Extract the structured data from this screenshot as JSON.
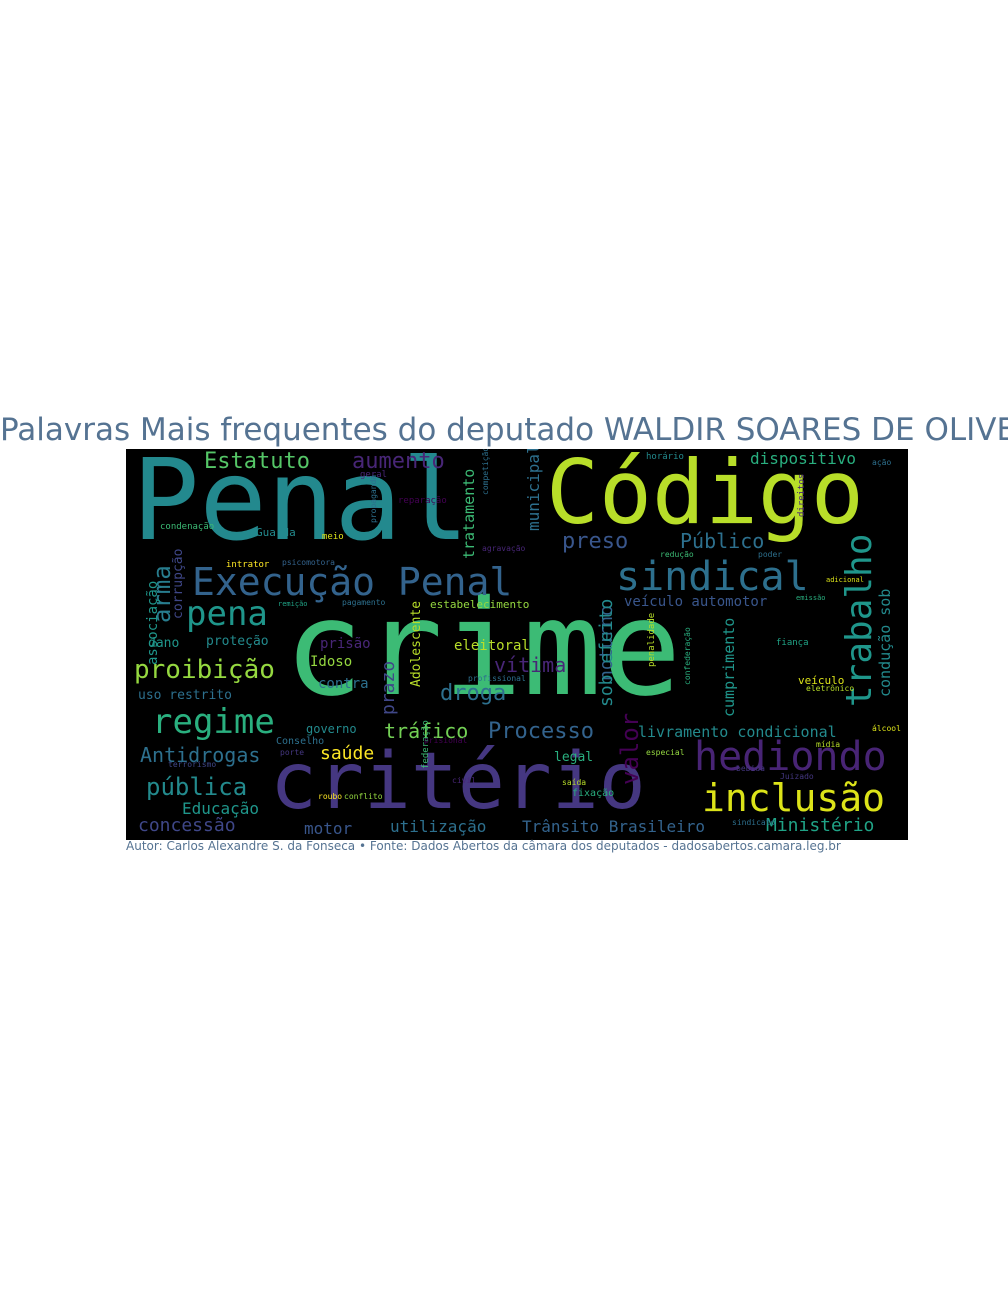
{
  "title": "Palavras Mais frequentes do deputado WALDIR SOARES DE OLIVEIRA",
  "caption": "Autor: Carlos Alexandre S. da Fonseca • Fonte: Dados Abertos da câmara dos deputados - dadosabertos.camara.leg.br",
  "colors": {
    "title_text": "#557392",
    "cloud_background": "#000000"
  },
  "cloud": {
    "words": [
      {
        "text": "Penal",
        "color": "#23898e"
      },
      {
        "text": "Código",
        "color": "#b8de29"
      },
      {
        "text": "crime",
        "color": "#3cbb75"
      },
      {
        "text": "critério",
        "color": "#453781"
      },
      {
        "text": "Execução Penal",
        "color": "#33638d"
      },
      {
        "text": "sindical",
        "color": "#2d708e"
      },
      {
        "text": "hediondo",
        "color": "#482475"
      },
      {
        "text": "inclusão",
        "color": "#dce319"
      },
      {
        "text": "trabalho",
        "color": "#1f968b"
      },
      {
        "text": "regime",
        "color": "#2ab07f"
      },
      {
        "text": "pena",
        "color": "#1f968b"
      },
      {
        "text": "proibição",
        "color": "#95d840"
      },
      {
        "text": "Estatuto",
        "color": "#55c667"
      },
      {
        "text": "aumento",
        "color": "#482677"
      },
      {
        "text": "preso",
        "color": "#39568c"
      },
      {
        "text": "Público",
        "color": "#2d708e"
      },
      {
        "text": "dispositivo",
        "color": "#29af7f"
      },
      {
        "text": "arma",
        "color": "#287d8e"
      },
      {
        "text": "Antidrogas",
        "color": "#2d708e"
      },
      {
        "text": "pública",
        "color": "#238a8d"
      },
      {
        "text": "Processo",
        "color": "#33638d"
      },
      {
        "text": "droga",
        "color": "#2d708e"
      },
      {
        "text": "vítima",
        "color": "#482677"
      },
      {
        "text": "tráfico",
        "color": "#73d055"
      },
      {
        "text": "saúde",
        "color": "#fde725"
      },
      {
        "text": "concessão",
        "color": "#3f4788"
      },
      {
        "text": "motor",
        "color": "#39568c"
      },
      {
        "text": "utilização",
        "color": "#2d708e"
      },
      {
        "text": "Trânsito Brasileiro",
        "color": "#33638d"
      },
      {
        "text": "Ministério",
        "color": "#20a386"
      },
      {
        "text": "valor",
        "color": "#440154"
      },
      {
        "text": "Educação",
        "color": "#1f968b"
      },
      {
        "text": "livramento condicional",
        "color": "#238a8d"
      },
      {
        "text": "veículo automotor",
        "color": "#39568c"
      },
      {
        "text": "cumprimento",
        "color": "#1f968b"
      },
      {
        "text": "condução sob",
        "color": "#238a8d"
      },
      {
        "text": "eleitoral",
        "color": "#b8de29"
      },
      {
        "text": "prazo",
        "color": "#404788"
      },
      {
        "text": "contra",
        "color": "#2d708e"
      },
      {
        "text": "Idoso",
        "color": "#95d840"
      },
      {
        "text": "prisão",
        "color": "#482677"
      },
      {
        "text": "proteção",
        "color": "#238a8d"
      },
      {
        "text": "dano",
        "color": "#1f968b"
      },
      {
        "text": "uso restrito",
        "color": "#2d708e"
      },
      {
        "text": "associação",
        "color": "#1f968b"
      },
      {
        "text": "corrupção",
        "color": "#3f4788"
      },
      {
        "text": "noturno",
        "color": "#33638d"
      },
      {
        "text": "sob efeito",
        "color": "#238a8d"
      },
      {
        "text": "Adolescente",
        "color": "#b8de29"
      },
      {
        "text": "municipal",
        "color": "#2d708e"
      },
      {
        "text": "tratamento",
        "color": "#3cbb75"
      },
      {
        "text": "legal",
        "color": "#29af7f"
      },
      {
        "text": "governo",
        "color": "#238a8d"
      },
      {
        "text": "estabelecimento",
        "color": "#95d840"
      },
      {
        "text": "Conselho",
        "color": "#2d708e"
      },
      {
        "text": "condenação",
        "color": "#3cbb75"
      },
      {
        "text": "intrator",
        "color": "#fde725"
      },
      {
        "text": "meio",
        "color": "#dce319"
      },
      {
        "text": "veículo",
        "color": "#dce319"
      },
      {
        "text": "eletrônico",
        "color": "#b8de29"
      },
      {
        "text": "confederação",
        "color": "#29af7f"
      },
      {
        "text": "fiança",
        "color": "#20a386"
      },
      {
        "text": "álcool",
        "color": "#dce319"
      },
      {
        "text": "roubo",
        "color": "#fde725"
      },
      {
        "text": "conflito",
        "color": "#95d840"
      },
      {
        "text": "Guarda",
        "color": "#238a8d"
      },
      {
        "text": "geral",
        "color": "#482677"
      },
      {
        "text": "fixação",
        "color": "#29af7f"
      },
      {
        "text": "redução",
        "color": "#3cbb75"
      },
      {
        "text": "poder",
        "color": "#2d708e"
      },
      {
        "text": "direitos",
        "color": "#482677"
      },
      {
        "text": "especial",
        "color": "#95d840"
      },
      {
        "text": "profissional",
        "color": "#2d708e"
      },
      {
        "text": "propaganda",
        "color": "#2d708e"
      },
      {
        "text": "psicomotora",
        "color": "#33638d"
      },
      {
        "text": "reparação",
        "color": "#440154"
      },
      {
        "text": "federação",
        "color": "#3cbb75"
      },
      {
        "text": "civil",
        "color": "#482677"
      },
      {
        "text": "porte",
        "color": "#453781"
      },
      {
        "text": "saída",
        "color": "#b8de29"
      },
      {
        "text": "Juizado",
        "color": "#453781"
      },
      {
        "text": "sindicato",
        "color": "#2d708e"
      },
      {
        "text": "horário",
        "color": "#238a8d"
      },
      {
        "text": "penalidade",
        "color": "#b8de29"
      },
      {
        "text": "prisional",
        "color": "#440154"
      },
      {
        "text": "terrorismo",
        "color": "#3f4788"
      },
      {
        "text": "bebida",
        "color": "#453781"
      },
      {
        "text": "mídia",
        "color": "#b8de29"
      },
      {
        "text": "emissão",
        "color": "#29af7f"
      },
      {
        "text": "adicional",
        "color": "#dce319"
      },
      {
        "text": "competição",
        "color": "#2d708e"
      },
      {
        "text": "agravação",
        "color": "#482677"
      },
      {
        "text": "pagamento",
        "color": "#2d708e"
      },
      {
        "text": "remição",
        "color": "#20a386"
      },
      {
        "text": "ação",
        "color": "#2d708e"
      }
    ]
  }
}
